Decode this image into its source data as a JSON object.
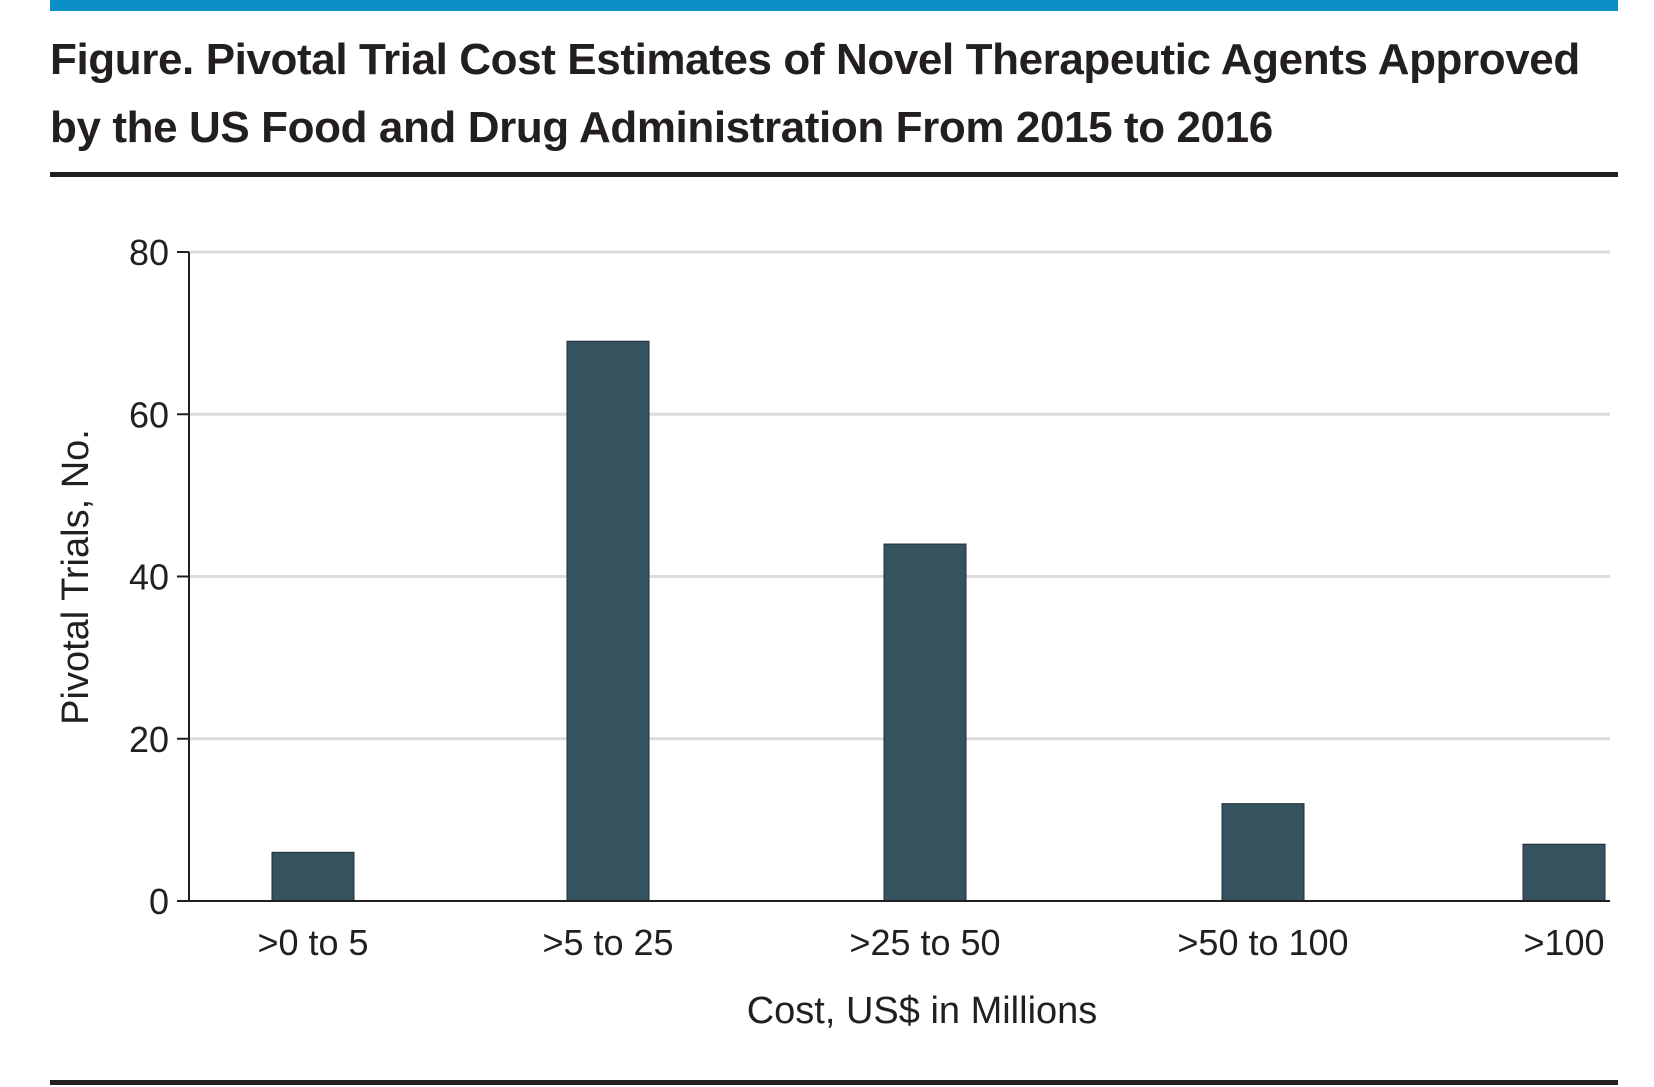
{
  "figure": {
    "title": "Figure. Pivotal Trial Cost Estimates of Novel Therapeutic Agents Approved by the US Food and Drug Administration From 2015 to 2016"
  },
  "colors": {
    "accent_rule": "#0a8fc6",
    "bar_fill": "#35525f",
    "grid": "#dcdcdc",
    "text": "#231f20"
  },
  "chart_data": {
    "type": "bar",
    "title": "",
    "xlabel": "Cost, US$ in Millions",
    "ylabel": "Pivotal Trials, No.",
    "categories": [
      ">0 to 5",
      ">5 to 25",
      ">25 to 50",
      ">50 to 100",
      ">100"
    ],
    "values": [
      6,
      69,
      44,
      12,
      7
    ],
    "ylim": [
      0,
      80
    ],
    "yticks": [
      0,
      20,
      40,
      60,
      80
    ],
    "grid": true,
    "legend": "none"
  }
}
